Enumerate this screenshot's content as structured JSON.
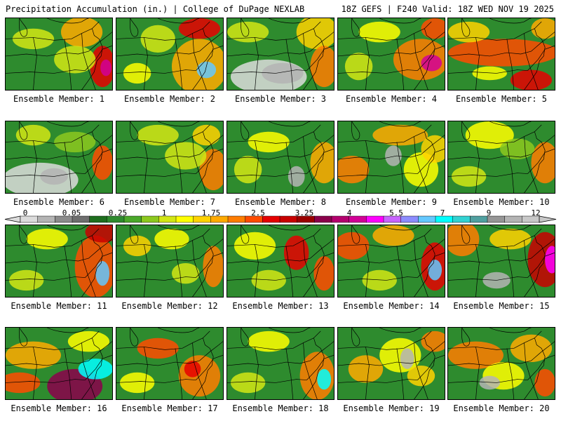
{
  "header": {
    "left": "Precipitation Accumulation (in.) | College of DuPage NEXLAB",
    "right": "18Z GEFS | F240 Valid: 18Z WED NOV 19 2025"
  },
  "colors": {
    "map_base": "#2e8b2e",
    "state_lines": "#000000",
    "palette": [
      "#dcdcdc",
      "#b4b4b4",
      "#8c8c8c",
      "#6e6e6e",
      "#1e6e1e",
      "#2e8b2e",
      "#4aa82a",
      "#8cc81e",
      "#d2e614",
      "#ffff00",
      "#ffd200",
      "#ffaa00",
      "#ff7d00",
      "#ff4b00",
      "#e60000",
      "#c80000",
      "#9b0000",
      "#8b004b",
      "#b4006e",
      "#d20096",
      "#ff00ff",
      "#c864ff",
      "#8c8cff",
      "#64c8ff",
      "#00ffff",
      "#32d2d2",
      "#50a0a0",
      "#969696",
      "#b4b4b4",
      "#c8c8c8"
    ]
  },
  "color_scale": {
    "labels": [
      "0",
      "0.05",
      "0.25",
      "1",
      "1.75",
      "2.5",
      "3.25",
      "4",
      "5.5",
      "7",
      "9",
      "12"
    ]
  },
  "panels": [
    {
      "label": "Ensemble Member: 1"
    },
    {
      "label": "Ensemble Member: 2"
    },
    {
      "label": "Ensemble Member: 3"
    },
    {
      "label": "Ensemble Member: 4"
    },
    {
      "label": "Ensemble Member: 5"
    },
    {
      "label": "Ensemble Member: 6"
    },
    {
      "label": "Ensemble Member: 7"
    },
    {
      "label": "Ensemble Member: 8"
    },
    {
      "label": "Ensemble Member: 9"
    },
    {
      "label": "Ensemble Member: 10"
    },
    {
      "label": "Ensemble Member: 11"
    },
    {
      "label": "Ensemble Member: 12"
    },
    {
      "label": "Ensemble Member: 13"
    },
    {
      "label": "Ensemble Member: 14"
    },
    {
      "label": "Ensemble Member: 15"
    },
    {
      "label": "Ensemble Member: 16"
    },
    {
      "label": "Ensemble Member: 17"
    },
    {
      "label": "Ensemble Member: 18"
    },
    {
      "label": "Ensemble Member: 19"
    },
    {
      "label": "Ensemble Member: 20"
    }
  ]
}
